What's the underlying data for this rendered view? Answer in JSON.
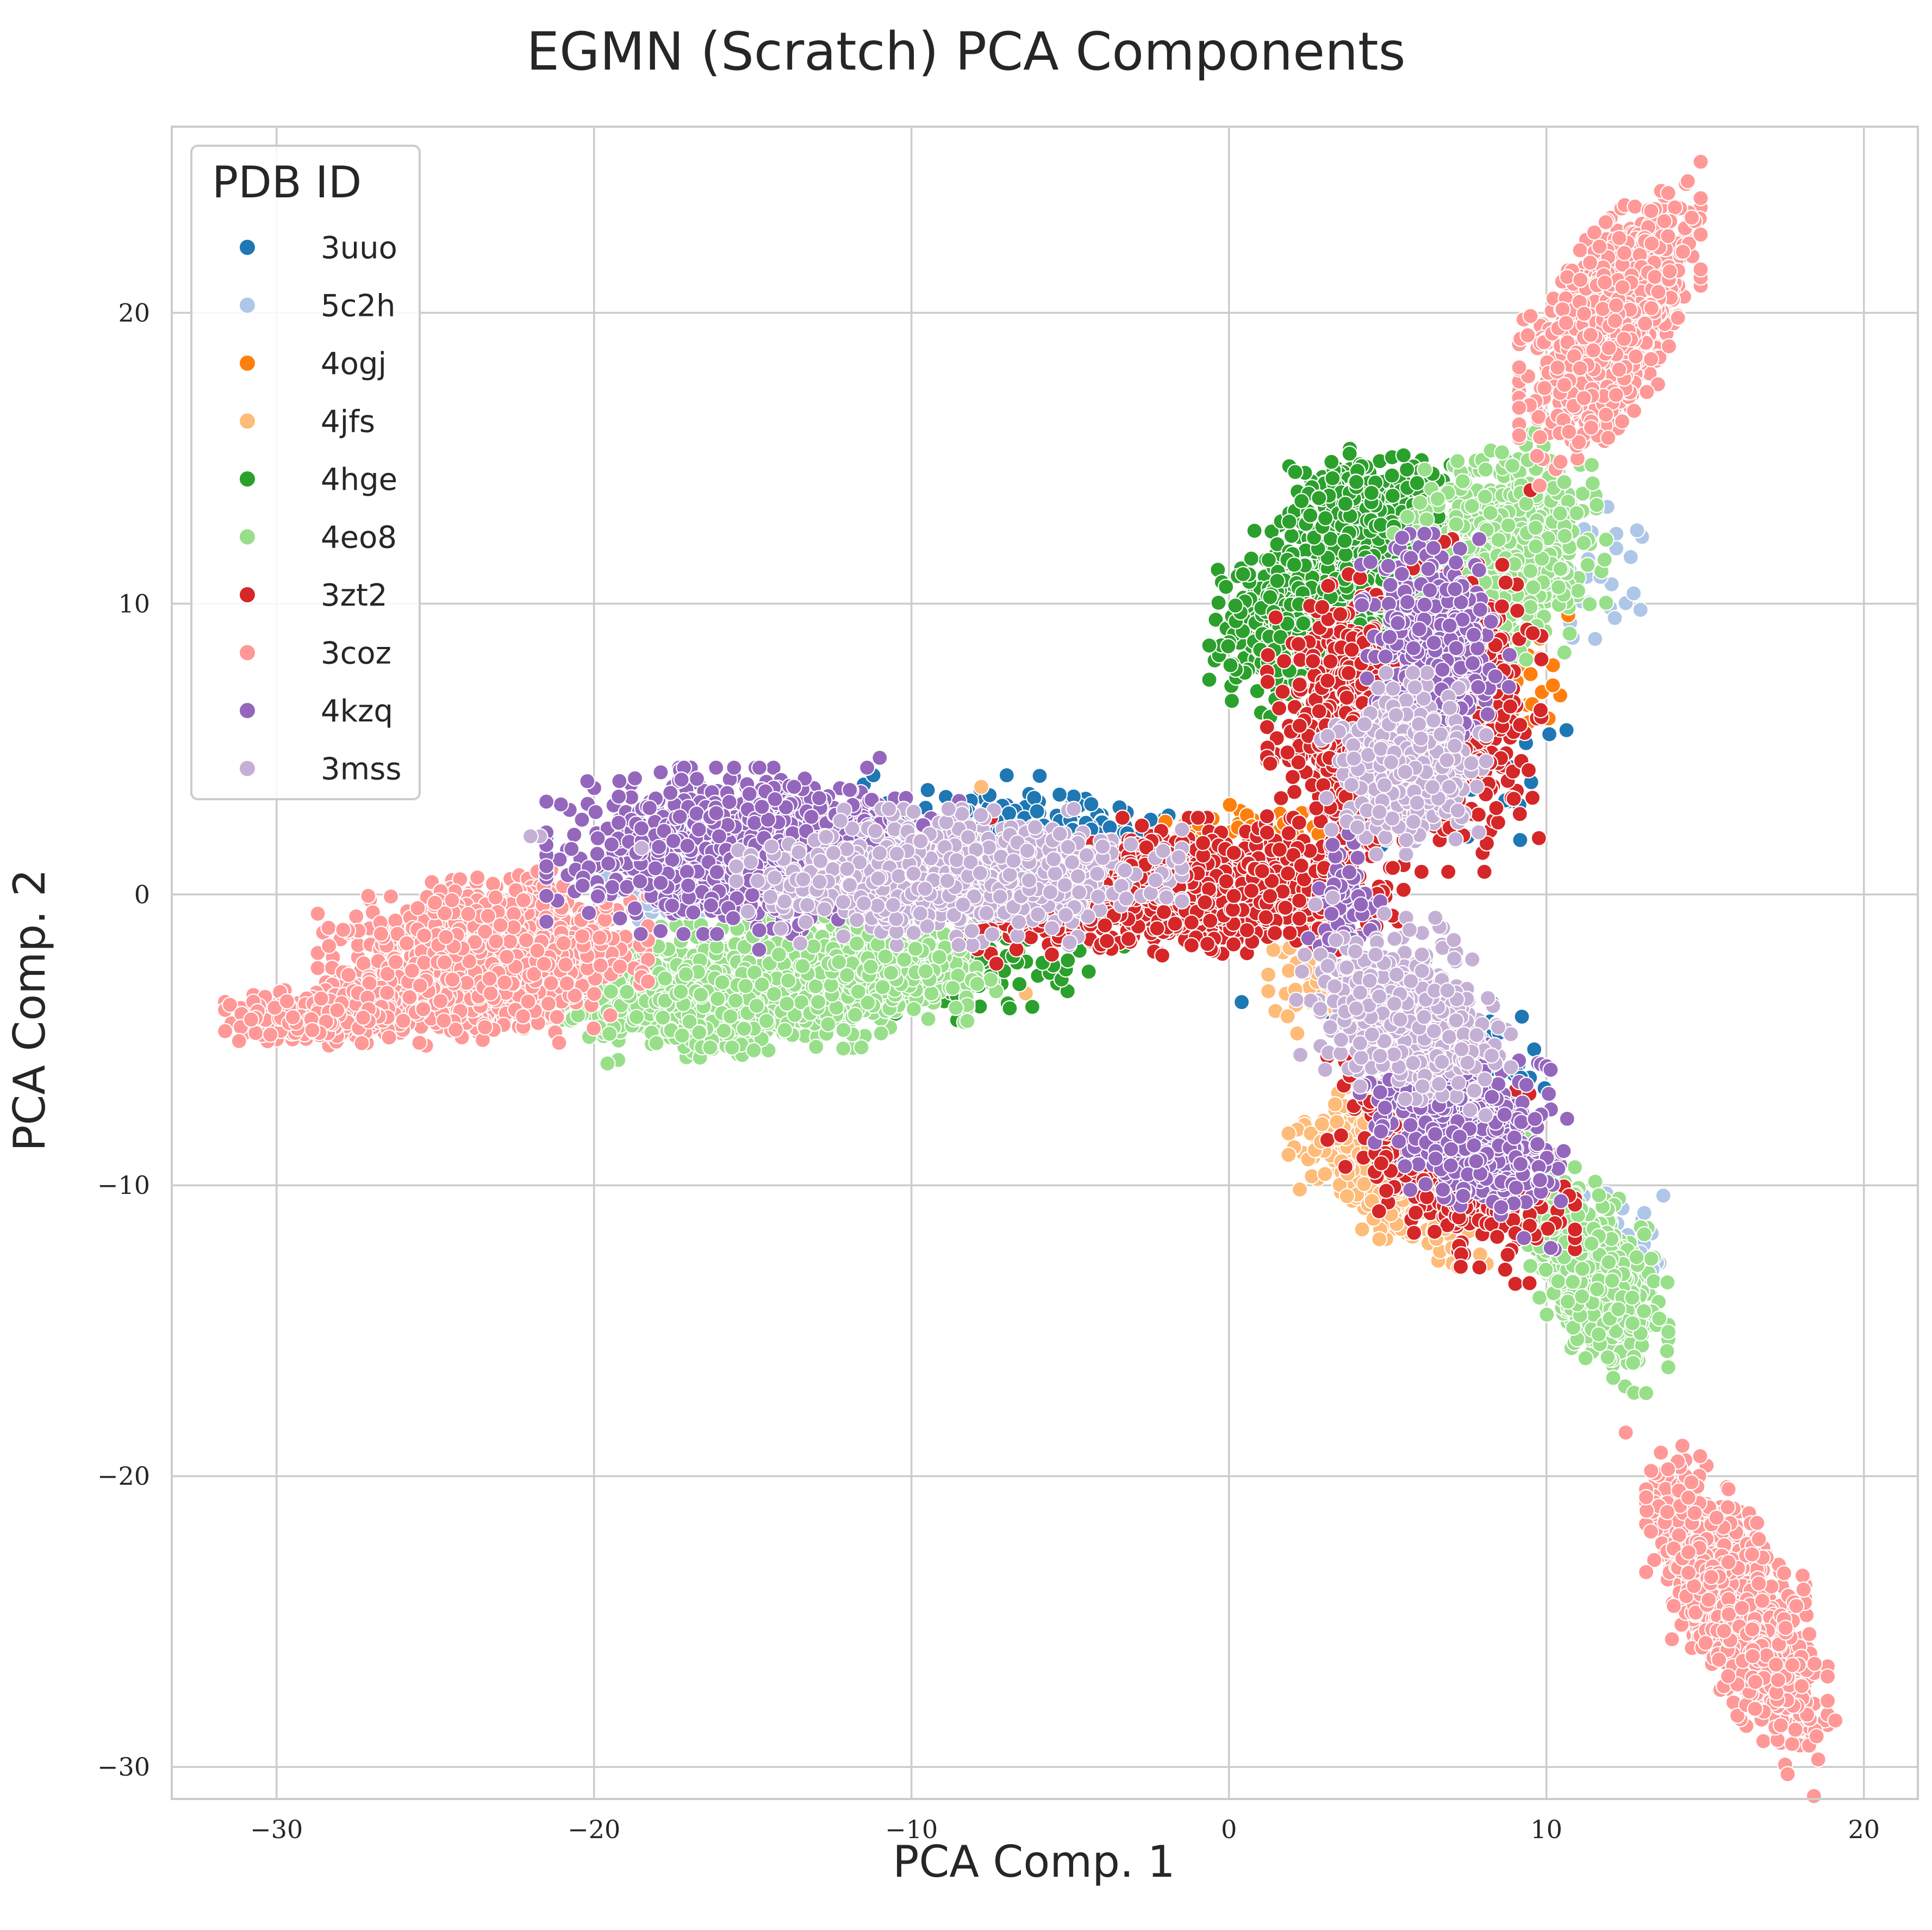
{
  "chart_data": {
    "type": "scatter",
    "title": "EGMN (Scratch) PCA Components",
    "xlabel": "PCA Comp. 1",
    "ylabel": "PCA Comp. 2",
    "xlim": [
      -33.3,
      21.7
    ],
    "ylim": [
      -31.1,
      26.4
    ],
    "xticks": [
      -30,
      -20,
      -10,
      0,
      10,
      20
    ],
    "yticks": [
      -30,
      -20,
      -10,
      0,
      10,
      20
    ],
    "xtick_labels": [
      "−30",
      "−20",
      "−10",
      "0",
      "10",
      "20"
    ],
    "ytick_labels": [
      "−30",
      "−20",
      "−10",
      "0",
      "10",
      "20"
    ],
    "grid": true,
    "legend": {
      "title": "PDB ID",
      "placement": "top-left"
    },
    "series": [
      {
        "name": "3uuo",
        "color": "#1f77b4",
        "clusters": [
          {
            "cx": -7.5,
            "cy": 2.6,
            "sx": 2.5,
            "sy": 0.6,
            "rho": 0,
            "n": 80
          },
          {
            "cx": -4.0,
            "cy": 2.0,
            "sx": 1.5,
            "sy": 0.5,
            "rho": 0,
            "n": 50
          },
          {
            "cx": 7.5,
            "cy": 4.2,
            "sx": 1.5,
            "sy": 1.2,
            "rho": 0,
            "n": 50
          },
          {
            "cx": 7.0,
            "cy": -5.5,
            "sx": 1.5,
            "sy": 1.0,
            "rho": 0,
            "n": 50
          }
        ],
        "points": [
          [
            0.4,
            -3.7
          ],
          [
            -7.0,
            4.1
          ],
          [
            -11.2,
            4.1
          ],
          [
            5.5,
            1.8
          ],
          [
            9.2,
            -6.3
          ]
        ]
      },
      {
        "name": "5c2h",
        "color": "#aec7e8",
        "clusters": [
          {
            "cx": -18.0,
            "cy": -0.3,
            "sx": 0.8,
            "sy": 0.5,
            "rho": 0,
            "n": 30
          },
          {
            "cx": 11.0,
            "cy": 11.0,
            "sx": 1.0,
            "sy": 1.2,
            "rho": 0,
            "n": 40
          },
          {
            "cx": 11.5,
            "cy": -12.0,
            "sx": 1.0,
            "sy": 0.8,
            "rho": 0,
            "n": 50
          }
        ],
        "points": [
          [
            12.2,
            12.4
          ],
          [
            13.1,
            -13.2
          ],
          [
            12.2,
            11.9
          ]
        ]
      },
      {
        "name": "4ogj",
        "color": "#ff7f0e",
        "clusters": [
          {
            "cx": 0.5,
            "cy": 2.3,
            "sx": 1.3,
            "sy": 0.3,
            "rho": 0,
            "n": 40
          },
          {
            "cx": 9.2,
            "cy": 7.0,
            "sx": 0.6,
            "sy": 1.0,
            "rho": 0,
            "n": 30
          }
        ],
        "points": [
          [
            9.8,
            8.8
          ],
          [
            -2.0,
            2.5
          ],
          [
            2.3,
            2.8
          ]
        ]
      },
      {
        "name": "4jfs",
        "color": "#ffbb78",
        "clusters": [
          {
            "cx": 5.0,
            "cy": -9.5,
            "sx": 1.2,
            "sy": 1.1,
            "rho": -0.5,
            "n": 420
          },
          {
            "cx": 2.8,
            "cy": -2.5,
            "sx": 0.6,
            "sy": 1.3,
            "rho": 0,
            "n": 50
          }
        ],
        "points": [
          [
            -6.4,
            -3.4
          ],
          [
            -7.8,
            3.7
          ],
          [
            2.9,
            -8.5
          ],
          [
            6.8,
            -11.5
          ]
        ]
      },
      {
        "name": "4hge",
        "color": "#2ca02c",
        "clusters": [
          {
            "cx": 2.5,
            "cy": 10.0,
            "sx": 1.2,
            "sy": 1.4,
            "rho": 0.3,
            "n": 700
          },
          {
            "cx": 4.5,
            "cy": 13.3,
            "sx": 1.0,
            "sy": 0.8,
            "rho": 0,
            "n": 350
          },
          {
            "cx": -8.5,
            "cy": -2.5,
            "sx": 2.0,
            "sy": 0.7,
            "rho": 0,
            "n": 120
          }
        ],
        "points": [
          [
            5.5,
            15.1
          ],
          [
            -7.5,
            -2.8
          ],
          [
            -10.5,
            -4.1
          ]
        ]
      },
      {
        "name": "4eo8",
        "color": "#98df8a",
        "clusters": [
          {
            "cx": -15.0,
            "cy": -3.2,
            "sx": 2.6,
            "sy": 0.9,
            "rho": 0.2,
            "n": 1500
          },
          {
            "cx": -10.5,
            "cy": -2.7,
            "sx": 1.3,
            "sy": 0.6,
            "rho": 0,
            "n": 150
          },
          {
            "cx": 8.5,
            "cy": 11.5,
            "sx": 1.3,
            "sy": 1.6,
            "rho": 0.3,
            "n": 900
          },
          {
            "cx": 11.5,
            "cy": -13.0,
            "sx": 0.9,
            "sy": 1.4,
            "rho": -0.5,
            "n": 700
          }
        ],
        "points": [
          [
            13.8,
            -15.7
          ],
          [
            7.2,
            14.9
          ],
          [
            8.6,
            15.2
          ]
        ]
      },
      {
        "name": "3zt2",
        "color": "#d62728",
        "clusters": [
          {
            "cx": -1.0,
            "cy": 0.3,
            "sx": 2.5,
            "sy": 0.9,
            "rho": 0,
            "n": 1000
          },
          {
            "cx": -5.5,
            "cy": -0.3,
            "sx": 1.6,
            "sy": 0.8,
            "rho": 0,
            "n": 200
          },
          {
            "cx": 3.8,
            "cy": 6.0,
            "sx": 1.0,
            "sy": 2.0,
            "rho": 0,
            "n": 500
          },
          {
            "cx": 7.5,
            "cy": 6.5,
            "sx": 0.9,
            "sy": 2.2,
            "rho": 0,
            "n": 350
          },
          {
            "cx": 7.0,
            "cy": -9.0,
            "sx": 1.5,
            "sy": 1.5,
            "rho": -0.5,
            "n": 500
          }
        ],
        "points": [
          [
            7.3,
            -12.8
          ],
          [
            8.7,
            -12.9
          ],
          [
            9.5,
            13.9
          ],
          [
            1.3,
            4.5
          ]
        ]
      },
      {
        "name": "3coz",
        "color": "#ff9896",
        "clusters": [
          {
            "cx": -23.5,
            "cy": -2.2,
            "sx": 2.0,
            "sy": 1.1,
            "rho": 0.2,
            "n": 1500
          },
          {
            "cx": -28.5,
            "cy": -4.2,
            "sx": 1.2,
            "sy": 0.35,
            "rho": 0,
            "n": 350
          },
          {
            "cx": 12.0,
            "cy": 19.5,
            "sx": 1.1,
            "sy": 1.8,
            "rho": 0.6,
            "n": 1300
          },
          {
            "cx": 16.0,
            "cy": -24.5,
            "sx": 1.1,
            "sy": 2.0,
            "rho": -0.7,
            "n": 1100
          }
        ],
        "points": [
          [
            12.5,
            -18.5
          ],
          [
            -30.8,
            -4.3
          ],
          [
            13.3,
            23.5
          ],
          [
            19.1,
            -28.4
          ],
          [
            -25.5,
            -5.1
          ],
          [
            -21.1,
            -5.1
          ],
          [
            18.1,
            -23.9
          ]
        ]
      },
      {
        "name": "4kzq",
        "color": "#9467bd",
        "clusters": [
          {
            "cx": -15.0,
            "cy": 1.5,
            "sx": 2.5,
            "sy": 1.1,
            "rho": 0,
            "n": 1500
          },
          {
            "cx": 6.5,
            "cy": 8.5,
            "sx": 0.9,
            "sy": 1.5,
            "rho": 0,
            "n": 500
          },
          {
            "cx": 7.5,
            "cy": -8.0,
            "sx": 1.3,
            "sy": 1.3,
            "rho": -0.4,
            "n": 600
          },
          {
            "cx": 3.8,
            "cy": -0.5,
            "sx": 0.5,
            "sy": 1.0,
            "rho": 0,
            "n": 80
          }
        ],
        "points": [
          [
            -11.0,
            4.7
          ],
          [
            -14.8,
            -1.9
          ],
          [
            -21.5,
            1.7
          ],
          [
            -17.9,
            4.2
          ],
          [
            -19.2,
            3.9
          ]
        ]
      },
      {
        "name": "3mss",
        "color": "#c5b0d5",
        "clusters": [
          {
            "cx": -8.5,
            "cy": 0.6,
            "sx": 2.7,
            "sy": 0.9,
            "rho": 0,
            "n": 900
          },
          {
            "cx": 5.5,
            "cy": 4.5,
            "sx": 1.0,
            "sy": 1.2,
            "rho": 0,
            "n": 500
          },
          {
            "cx": 5.5,
            "cy": -4.0,
            "sx": 1.3,
            "sy": 1.3,
            "rho": -0.3,
            "n": 600
          }
        ],
        "points": [
          [
            -21.7,
            2.0
          ],
          [
            -22.0,
            2.0
          ],
          [
            -18.5,
            1.6
          ],
          [
            6.5,
            -0.8
          ]
        ]
      }
    ]
  }
}
